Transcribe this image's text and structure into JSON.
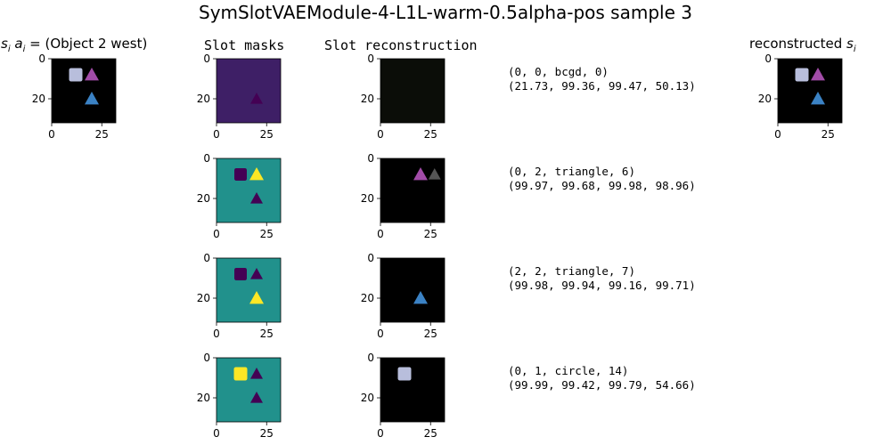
{
  "figure": {
    "title": "SymSlotVAEModule-4-L1L-warm-0.5alpha-pos sample 3"
  },
  "columns": {
    "input_title_prefix": "s",
    "input_title_sub": "i",
    "input_title_a": "a",
    "input_title_a_sub": "i",
    "input_title_eq": " = ",
    "input_title_value": "(Object 2 west)",
    "masks_title": "Slot masks",
    "recon_title": "Slot reconstruction",
    "output_title_prefix": "reconstructed ",
    "output_title_var": "s",
    "output_title_sub": "i"
  },
  "axes": {
    "x_ticks": [
      "0",
      "25"
    ],
    "y_ticks": [
      "0",
      "20"
    ]
  },
  "slots": [
    {
      "line1": "(0, 0, bcgd, 0)",
      "line2": "(21.73, 99.36, 99.47, 50.13)"
    },
    {
      "line1": "(0, 2, triangle, 6)",
      "line2": "(99.97, 99.68, 99.98, 98.96)"
    },
    {
      "line1": "(2, 2, triangle, 7)",
      "line2": "(99.98, 99.94, 99.16, 99.71)"
    },
    {
      "line1": "(0, 1, circle, 14)",
      "line2": "(99.99, 99.42, 99.79, 54.66)"
    }
  ],
  "colors": {
    "square": "#b8bedc",
    "triangle_purple": "#a24ca8",
    "triangle_blue": "#3b82c4",
    "mask_dark": "#440154",
    "mask_mid": "#3b528b",
    "mask_teal": "#21918c",
    "mask_green": "#5ec962",
    "mask_yellow": "#fde725"
  },
  "chart_data": {
    "type": "heatmap",
    "title": "SymSlotVAEModule-4-L1L-warm-0.5alpha-pos sample 3",
    "image_size": [
      32,
      32
    ],
    "xlim": [
      0,
      32
    ],
    "ylim": [
      32,
      0
    ],
    "xticks": [
      0,
      25
    ],
    "yticks": [
      0,
      20
    ],
    "objects": [
      {
        "shape": "square",
        "x": 12,
        "y": 8,
        "color": "#b8bedc"
      },
      {
        "shape": "triangle",
        "x": 20,
        "y": 8,
        "color": "#a24ca8"
      },
      {
        "shape": "triangle",
        "x": 20,
        "y": 20,
        "color": "#3b82c4"
      }
    ],
    "panels": [
      "input",
      "mask-1",
      "recon-1",
      "output",
      "mask-2",
      "recon-2",
      "mask-3",
      "recon-3",
      "mask-4",
      "recon-4"
    ]
  }
}
